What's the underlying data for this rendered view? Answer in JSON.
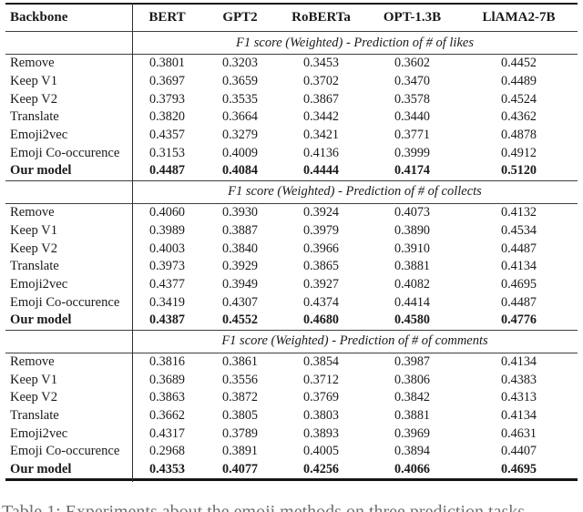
{
  "table": {
    "columns": [
      "Backbone",
      "BERT",
      "GPT2",
      "RoBERTa",
      "OPT-1.3B",
      "LlAMA2-7B"
    ],
    "sections": [
      {
        "title": "F1 score (Weighted) - Prediction of # of likes",
        "rows": [
          {
            "label": "Remove",
            "bold": false,
            "values": [
              "0.3801",
              "0.3203",
              "0.3453",
              "0.3602",
              "0.4452"
            ]
          },
          {
            "label": "Keep V1",
            "bold": false,
            "values": [
              "0.3697",
              "0.3659",
              "0.3702",
              "0.3470",
              "0.4489"
            ]
          },
          {
            "label": "Keep V2",
            "bold": false,
            "values": [
              "0.3793",
              "0.3535",
              "0.3867",
              "0.3578",
              "0.4524"
            ]
          },
          {
            "label": "Translate",
            "bold": false,
            "values": [
              "0.3820",
              "0.3664",
              "0.3442",
              "0.3440",
              "0.4362"
            ]
          },
          {
            "label": "Emoji2vec",
            "bold": false,
            "values": [
              "0.4357",
              "0.3279",
              "0.3421",
              "0.3771",
              "0.4878"
            ]
          },
          {
            "label": "Emoji Co-occurence",
            "bold": false,
            "values": [
              "0.3153",
              "0.4009",
              "0.4136",
              "0.3999",
              "0.4912"
            ]
          },
          {
            "label": "Our model",
            "bold": true,
            "values": [
              "0.4487",
              "0.4084",
              "0.4444",
              "0.4174",
              "0.5120"
            ]
          }
        ]
      },
      {
        "title": "F1 score (Weighted) - Prediction of # of collects",
        "rows": [
          {
            "label": "Remove",
            "bold": false,
            "values": [
              "0.4060",
              "0.3930",
              "0.3924",
              "0.4073",
              "0.4132"
            ]
          },
          {
            "label": "Keep V1",
            "bold": false,
            "values": [
              "0.3989",
              "0.3887",
              "0.3979",
              "0.3890",
              "0.4534"
            ]
          },
          {
            "label": "Keep V2",
            "bold": false,
            "values": [
              "0.4003",
              "0.3840",
              "0.3966",
              "0.3910",
              "0.4487"
            ]
          },
          {
            "label": "Translate",
            "bold": false,
            "values": [
              "0.3973",
              "0.3929",
              "0.3865",
              "0.3881",
              "0.4134"
            ]
          },
          {
            "label": "Emoji2vec",
            "bold": false,
            "values": [
              "0.4377",
              "0.3949",
              "0.3927",
              "0.4082",
              "0.4695"
            ]
          },
          {
            "label": "Emoji Co-occurence",
            "bold": false,
            "values": [
              "0.3419",
              "0.4307",
              "0.4374",
              "0.4414",
              "0.4487"
            ]
          },
          {
            "label": "Our model",
            "bold": true,
            "values": [
              "0.4387",
              "0.4552",
              "0.4680",
              "0.4580",
              "0.4776"
            ]
          }
        ]
      },
      {
        "title": "F1 score (Weighted) - Prediction of # of comments",
        "rows": [
          {
            "label": "Remove",
            "bold": false,
            "values": [
              "0.3816",
              "0.3861",
              "0.3854",
              "0.3987",
              "0.4134"
            ]
          },
          {
            "label": "Keep V1",
            "bold": false,
            "values": [
              "0.3689",
              "0.3556",
              "0.3712",
              "0.3806",
              "0.4383"
            ]
          },
          {
            "label": "Keep V2",
            "bold": false,
            "values": [
              "0.3863",
              "0.3872",
              "0.3769",
              "0.3842",
              "0.4313"
            ]
          },
          {
            "label": "Translate",
            "bold": false,
            "values": [
              "0.3662",
              "0.3805",
              "0.3803",
              "0.3881",
              "0.4134"
            ]
          },
          {
            "label": "Emoji2vec",
            "bold": false,
            "values": [
              "0.4317",
              "0.3789",
              "0.3893",
              "0.3969",
              "0.4631"
            ]
          },
          {
            "label": "Emoji Co-occurence",
            "bold": false,
            "values": [
              "0.2968",
              "0.3891",
              "0.4005",
              "0.3894",
              "0.4407"
            ]
          },
          {
            "label": "Our model",
            "bold": true,
            "values": [
              "0.4353",
              "0.4077",
              "0.4256",
              "0.4066",
              "0.4695"
            ]
          }
        ]
      }
    ]
  },
  "caption_partial": "Table 1: Experiments about the emoji methods on three prediction tasks",
  "edge_fragment": "(",
  "colors": {
    "text": "#1a1a1a",
    "rule": "#3f3f3f",
    "thick_rule": "#141414",
    "background": "#ffffff"
  }
}
